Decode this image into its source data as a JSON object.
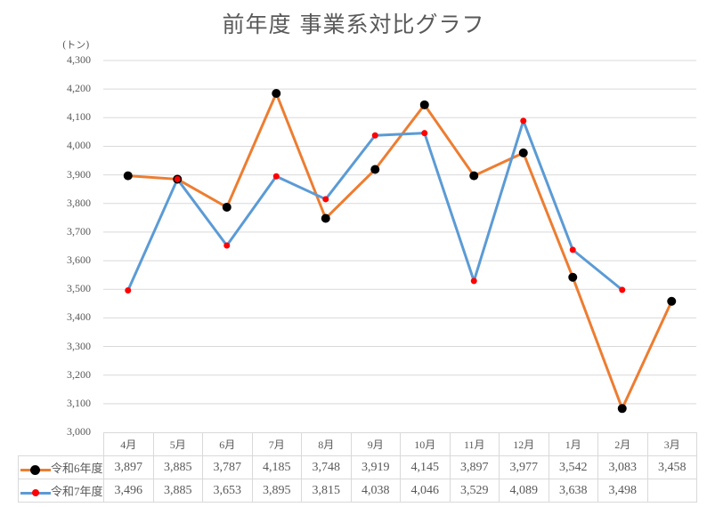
{
  "chart_data": {
    "type": "line",
    "title": "前年度 事業系対比グラフ",
    "ylabel": "(トン)",
    "xlabel": "",
    "ylim": [
      3000,
      4300
    ],
    "yticks": [
      "4,300",
      "4,200",
      "4,100",
      "4,000",
      "3,900",
      "3,800",
      "3,700",
      "3,600",
      "3,500",
      "3,400",
      "3,300",
      "3,200",
      "3,100",
      "3,000"
    ],
    "grid": true,
    "legend_position": "data-table",
    "categories": [
      "4月",
      "5月",
      "6月",
      "7月",
      "8月",
      "9月",
      "10月",
      "11月",
      "12月",
      "1月",
      "2月",
      "3月"
    ],
    "series": [
      {
        "name": "令和6年度",
        "line_color": "#ED7D31",
        "marker_color": "#000000",
        "values": [
          3897,
          3885,
          3787,
          4185,
          3748,
          3919,
          4145,
          3897,
          3977,
          3542,
          3083,
          3458
        ],
        "labels": [
          "3,897",
          "3,885",
          "3,787",
          "4,185",
          "3,748",
          "3,919",
          "4,145",
          "3,897",
          "3,977",
          "3,542",
          "3,083",
          "3,458"
        ]
      },
      {
        "name": "令和7年度",
        "line_color": "#5B9BD5",
        "marker_color": "#FF0000",
        "values": [
          3496,
          3885,
          3653,
          3895,
          3815,
          4038,
          4046,
          3529,
          4089,
          3638,
          3498,
          null
        ],
        "labels": [
          "3,496",
          "3,885",
          "3,653",
          "3,895",
          "3,815",
          "4,038",
          "4,046",
          "3,529",
          "4,089",
          "3,638",
          "3,498",
          ""
        ]
      }
    ]
  }
}
